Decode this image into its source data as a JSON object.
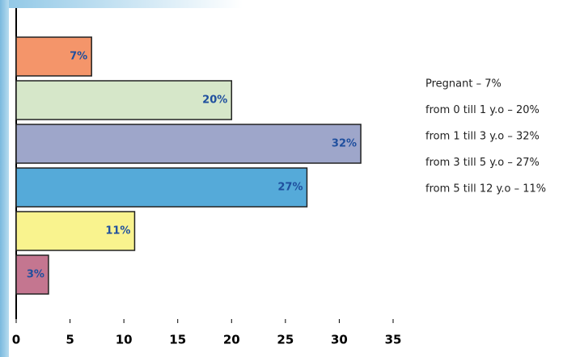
{
  "chart_data": {
    "type": "bar",
    "orientation": "horizontal",
    "categories": [
      "Pregnant – 7%",
      "from 0 till 1 y.o – 20%",
      "from 1 till 3 y.o – 32%",
      "from 3 till 5 y.o – 27%",
      "from 5 till 12 y.o – 11%",
      null
    ],
    "values": [
      7,
      20,
      32,
      27,
      11,
      3
    ],
    "value_labels": [
      "7%",
      "20%",
      "32%",
      "27%",
      "11%",
      "3%"
    ],
    "colors": [
      "#f4956a",
      "#d6e7c9",
      "#9ea6ca",
      "#55aad9",
      "#f9f38e",
      "#c47690"
    ],
    "xlim": [
      0,
      35
    ],
    "xticks": [
      0,
      5,
      10,
      15,
      20,
      25,
      30,
      35
    ],
    "grid": false
  }
}
